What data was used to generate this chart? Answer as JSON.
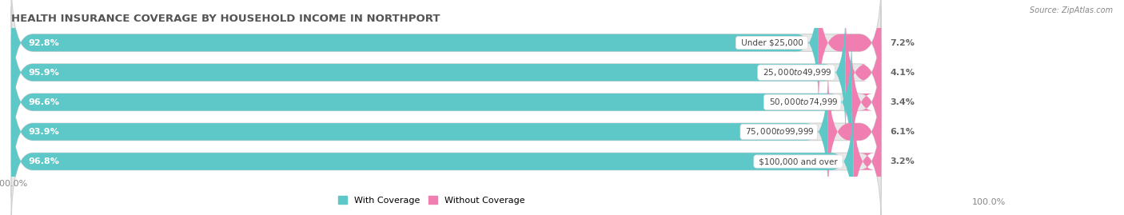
{
  "title": "HEALTH INSURANCE COVERAGE BY HOUSEHOLD INCOME IN NORTHPORT",
  "source": "Source: ZipAtlas.com",
  "categories": [
    "Under $25,000",
    "$25,000 to $49,999",
    "$50,000 to $74,999",
    "$75,000 to $99,999",
    "$100,000 and over"
  ],
  "with_coverage": [
    92.8,
    95.9,
    96.6,
    93.9,
    96.8
  ],
  "without_coverage": [
    7.2,
    4.1,
    3.4,
    6.1,
    3.2
  ],
  "color_with": "#5EC8C8",
  "color_without": "#F07EB0",
  "color_bg_bar": "#E8E8E8",
  "color_fig_bg": "#FFFFFF",
  "title_fontsize": 9.5,
  "source_fontsize": 7,
  "bar_label_fontsize": 8,
  "cat_label_fontsize": 7.5,
  "legend_fontsize": 8,
  "figsize": [
    14.06,
    2.69
  ],
  "dpi": 100
}
